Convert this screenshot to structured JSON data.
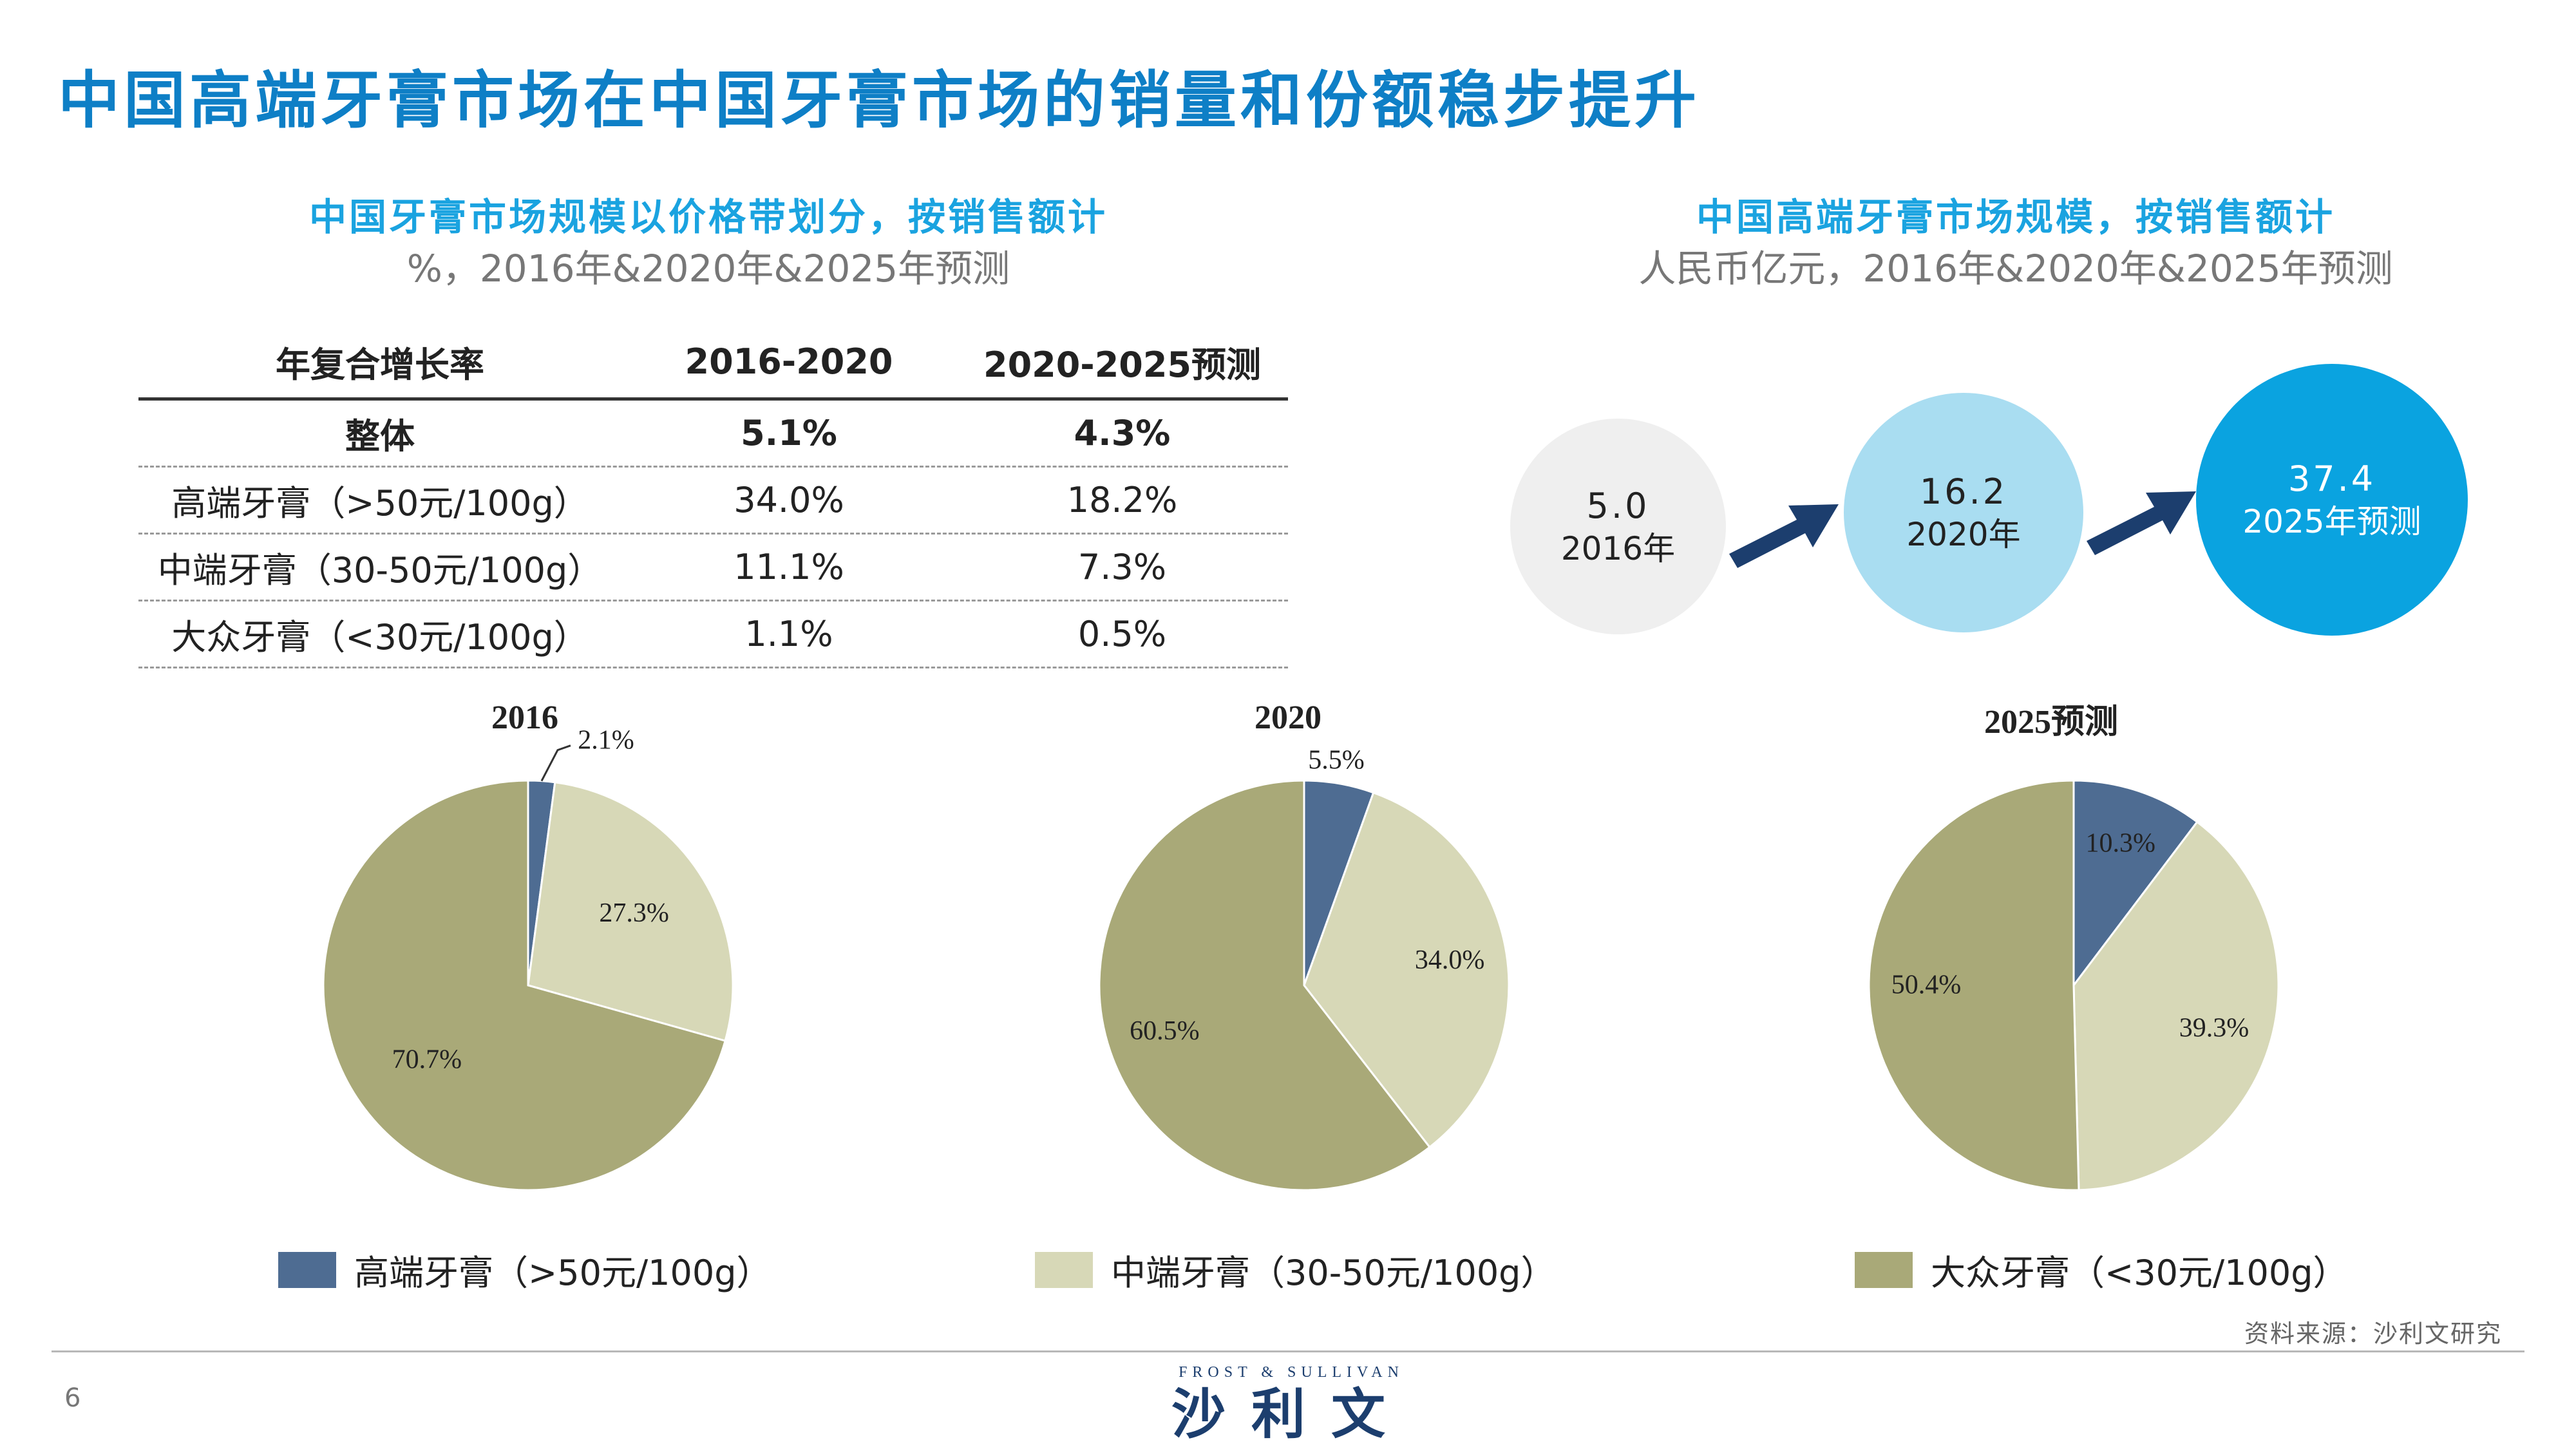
{
  "title": "中国高端牙膏市场在中国牙膏市场的销量和份额稳步提升",
  "left_panel": {
    "title": "中国牙膏市场规模以价格带划分，按销售额计",
    "unit": "%，2016年&2020年&2025年预测",
    "table": {
      "headers": [
        "年复合增长率",
        "2016-2020",
        "2020-2025预测"
      ],
      "rows": [
        [
          "整体",
          "5.1%",
          "4.3%"
        ],
        [
          "高端牙膏（>50元/100g）",
          "34.0%",
          "18.2%"
        ],
        [
          "中端牙膏（30-50元/100g）",
          "11.1%",
          "7.3%"
        ],
        [
          "大众牙膏（<30元/100g）",
          "1.1%",
          "0.5%"
        ]
      ]
    }
  },
  "right_panel": {
    "title": "中国高端牙膏市场规模，按销售额计",
    "unit": "人民币亿元，2016年&2020年&2025年预测",
    "bubbles": [
      {
        "value": "5.0",
        "label": "2016年",
        "color": "#efefef",
        "text_color": "#222222"
      },
      {
        "value": "16.2",
        "label": "2020年",
        "color": "#a9ddf1",
        "text_color": "#222222"
      },
      {
        "value": "37.4",
        "label": "2025年预测",
        "color": "#0aa3e0",
        "text_color": "#ffffff"
      }
    ],
    "arrow_color": "#1c3e6e"
  },
  "chart_data": [
    {
      "type": "pie",
      "title": "2016",
      "categories": [
        "高端牙膏（>50元/100g）",
        "中端牙膏（30-50元/100g）",
        "大众牙膏（<30元/100g）"
      ],
      "values": [
        2.1,
        27.3,
        70.7
      ],
      "labels": [
        "2.1%",
        "27.3%",
        "70.7%"
      ],
      "colors": [
        "#4e6c92",
        "#d7d8b7",
        "#a9a978"
      ]
    },
    {
      "type": "pie",
      "title": "2020",
      "categories": [
        "高端牙膏（>50元/100g）",
        "中端牙膏（30-50元/100g）",
        "大众牙膏（<30元/100g）"
      ],
      "values": [
        5.5,
        34.0,
        60.5
      ],
      "labels": [
        "5.5%",
        "34.0%",
        "60.5%"
      ],
      "colors": [
        "#4e6c92",
        "#d7d8b7",
        "#a9a978"
      ]
    },
    {
      "type": "pie",
      "title": "2025预测",
      "categories": [
        "高端牙膏（>50元/100g）",
        "中端牙膏（30-50元/100g）",
        "大众牙膏（<30元/100g）"
      ],
      "values": [
        10.3,
        39.3,
        50.4
      ],
      "labels": [
        "10.3%",
        "39.3%",
        "50.4%"
      ],
      "colors": [
        "#4e6c92",
        "#d7d8b7",
        "#a9a978"
      ]
    }
  ],
  "legend": [
    {
      "label": "高端牙膏（>50元/100g）",
      "color": "#4e6c92"
    },
    {
      "label": "中端牙膏（30-50元/100g）",
      "color": "#d7d8b7"
    },
    {
      "label": "大众牙膏（<30元/100g）",
      "color": "#a9a978"
    }
  ],
  "source": "资料来源：沙利文研究",
  "page_number": "6",
  "logo": {
    "en": "FROST & SULLIVAN",
    "cn": "沙利文"
  }
}
